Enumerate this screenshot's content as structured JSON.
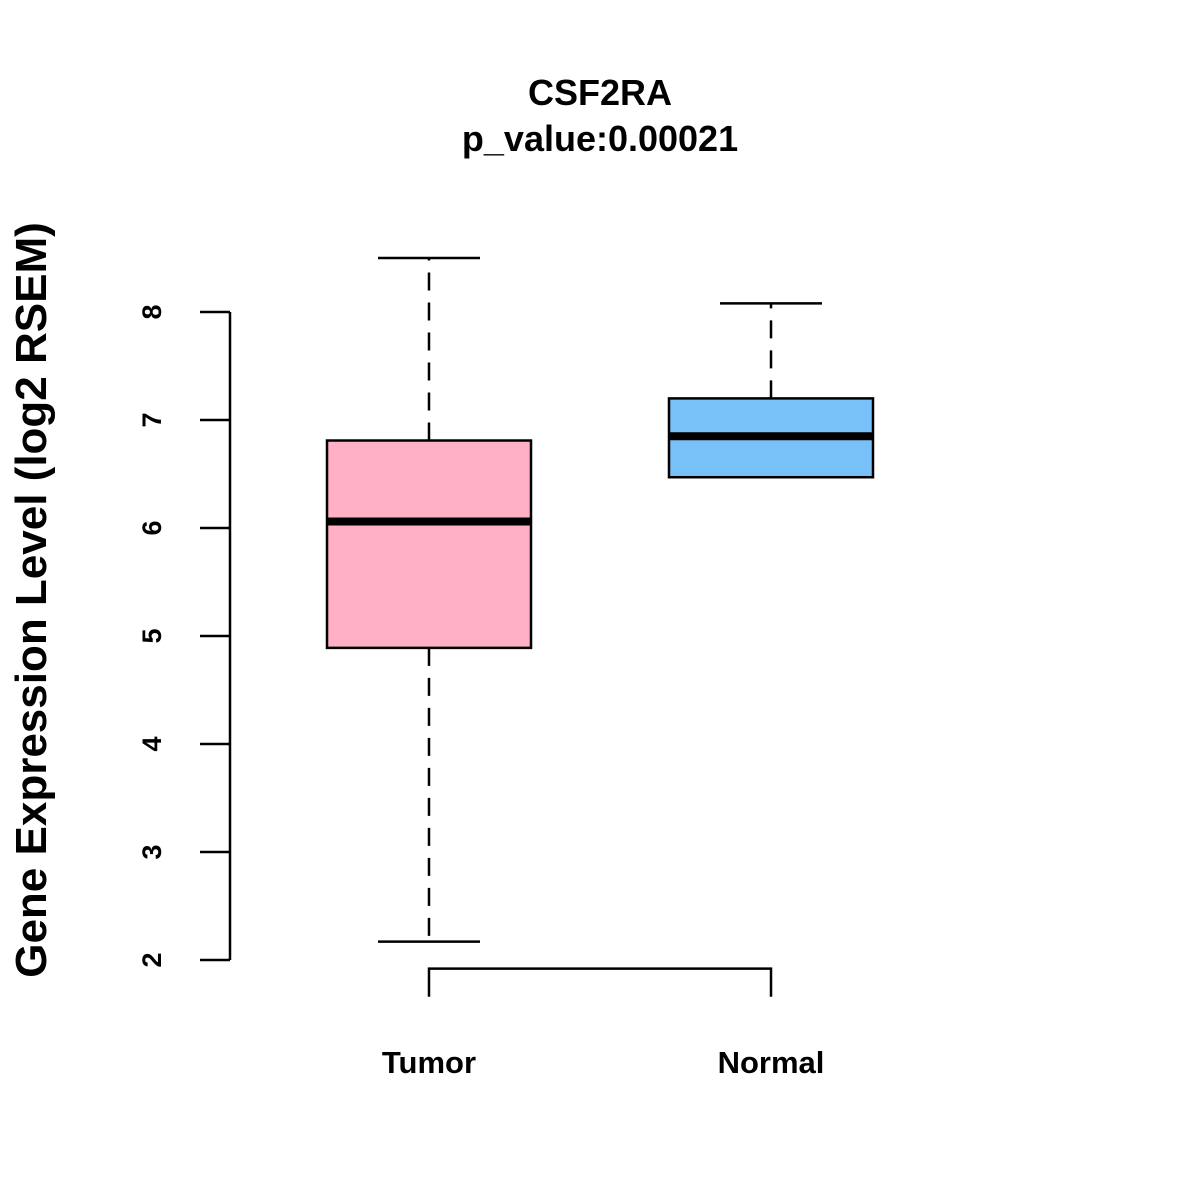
{
  "chart_data": {
    "type": "boxplot",
    "title": "CSF2RA",
    "subtitle": "p_value:0.00021",
    "xlabel": "",
    "ylabel": "Gene Expression Level (log2 RSEM)",
    "ylim": [
      2,
      8
    ],
    "yticks": [
      2,
      3,
      4,
      5,
      6,
      7,
      8
    ],
    "grid": false,
    "categories": [
      "Tumor",
      "Normal"
    ],
    "boxes": [
      {
        "category": "Tumor",
        "whisker_low": 2.17,
        "q1": 4.89,
        "median": 6.06,
        "q3": 6.81,
        "whisker_high": 8.5,
        "color": "#FFB0C4"
      },
      {
        "category": "Normal",
        "whisker_low": 6.47,
        "q1": 6.47,
        "median": 6.85,
        "q3": 7.2,
        "whisker_high": 8.08,
        "color": "#78C1F8"
      }
    ],
    "comparison_bracket": {
      "from": "Tumor",
      "to": "Normal",
      "y": 1.92,
      "drop_to": 1.66
    }
  }
}
